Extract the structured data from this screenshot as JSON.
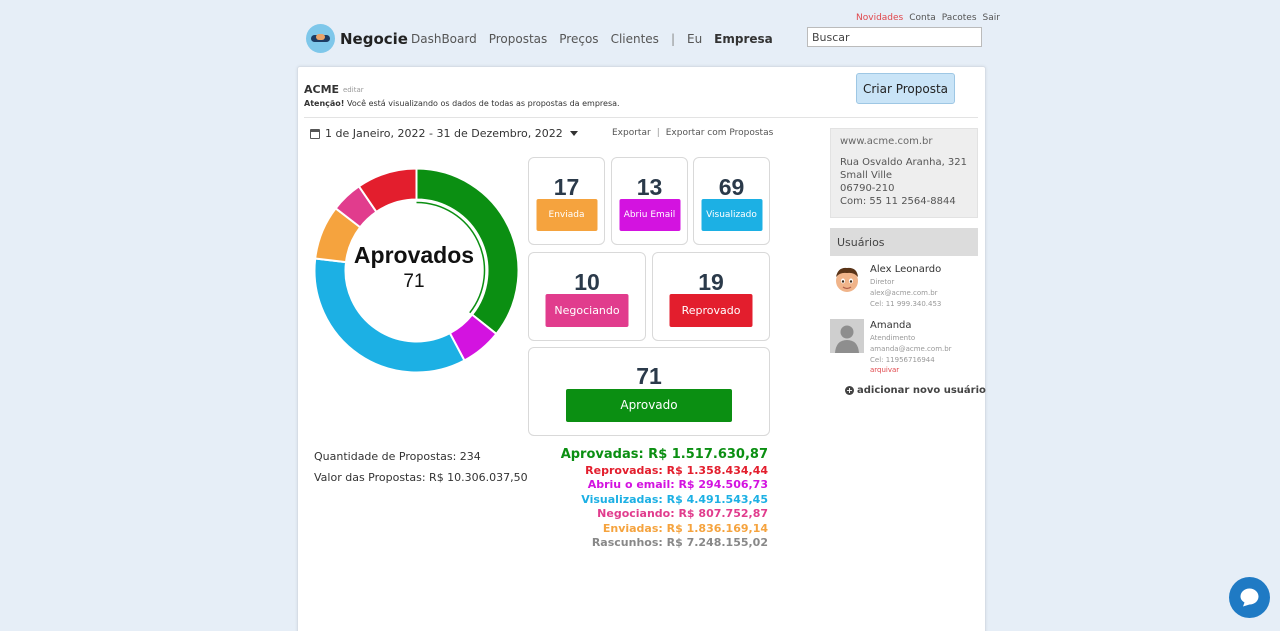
{
  "toplinks": [
    "Novidades",
    "Conta",
    "Pacotes",
    "Sair"
  ],
  "logo": {
    "text": "Negocie"
  },
  "nav": {
    "items": [
      "DashBoard",
      "Propostas",
      "Preços",
      "Clientes"
    ],
    "sep": "|",
    "eu": "Eu",
    "empresa": "Empresa"
  },
  "search": {
    "placeholder": "Buscar"
  },
  "company": {
    "name": "ACME",
    "edit": "editar",
    "notice_label": "Atenção!",
    "notice_text": " Você está visualizando os dados de todas as propostas da empresa."
  },
  "create_button": "Criar Proposta",
  "date_range": "1 de Janeiro, 2022 - 31 de Dezembro, 2022",
  "exports": {
    "export": "Exportar",
    "sep": "|",
    "export_with": "Exportar com Propostas"
  },
  "donut": {
    "label": "Aprovados",
    "value": "71"
  },
  "chart_data": {
    "type": "pie",
    "categories": [
      "Aprovado",
      "Abriu Email",
      "Visualizado",
      "Enviada",
      "Negociando",
      "Reprovado"
    ],
    "values": [
      71,
      13,
      69,
      17,
      10,
      19
    ],
    "colors": [
      "#0b8f12",
      "#d313e0",
      "#1cb0e4",
      "#f5a33e",
      "#e13c8d",
      "#e31e2d"
    ]
  },
  "status": {
    "enviada": {
      "count": "17",
      "label": "Enviada",
      "color": "#f5a33e"
    },
    "abriu": {
      "count": "13",
      "label": "Abriu Email",
      "color": "#d313e0"
    },
    "visualizado": {
      "count": "69",
      "label": "Visualizado",
      "color": "#1cb0e4"
    },
    "negociando": {
      "count": "10",
      "label": "Negociando",
      "color": "#e13c8d"
    },
    "reprovado": {
      "count": "19",
      "label": "Reprovado",
      "color": "#e31e2d"
    },
    "aprovado": {
      "count": "71",
      "label": "Aprovado",
      "color": "#0b8f12"
    }
  },
  "totals": {
    "quantity": "Quantidade de Propostas: 234",
    "value": "Valor das Propostas: R$ 10.306.037,50",
    "aprovadas": "Aprovadas: R$ 1.517.630,87",
    "reprovadas": "Reprovadas: R$ 1.358.434,44",
    "abriu": "Abriu o email: R$ 294.506,73",
    "visualizadas": "Visualizadas: R$ 4.491.543,45",
    "negociando": "Negociando: R$ 807.752,87",
    "enviadas": "Enviadas: R$ 1.836.169,14",
    "rascunhos": "Rascunhos: R$ 7.248.155,02"
  },
  "address": {
    "site": "www.acme.com.br",
    "street": "Rua Osvaldo Aranha, 321",
    "city": "Small Ville",
    "zip": "06790-210",
    "phone": "Com: 55 11 2564-8844"
  },
  "users": {
    "title": "Usuários",
    "list": [
      {
        "name": "Alex Leonardo",
        "role": "Diretor",
        "email": "alex@acme.com.br",
        "phone": "Cel: 11 999.340.453"
      },
      {
        "name": "Amanda",
        "role": "Atendimento",
        "email": "amanda@acme.com.br",
        "phone": "Cel: 11956716944",
        "archive": "arquivar"
      }
    ],
    "add": "adicionar novo usuário"
  }
}
